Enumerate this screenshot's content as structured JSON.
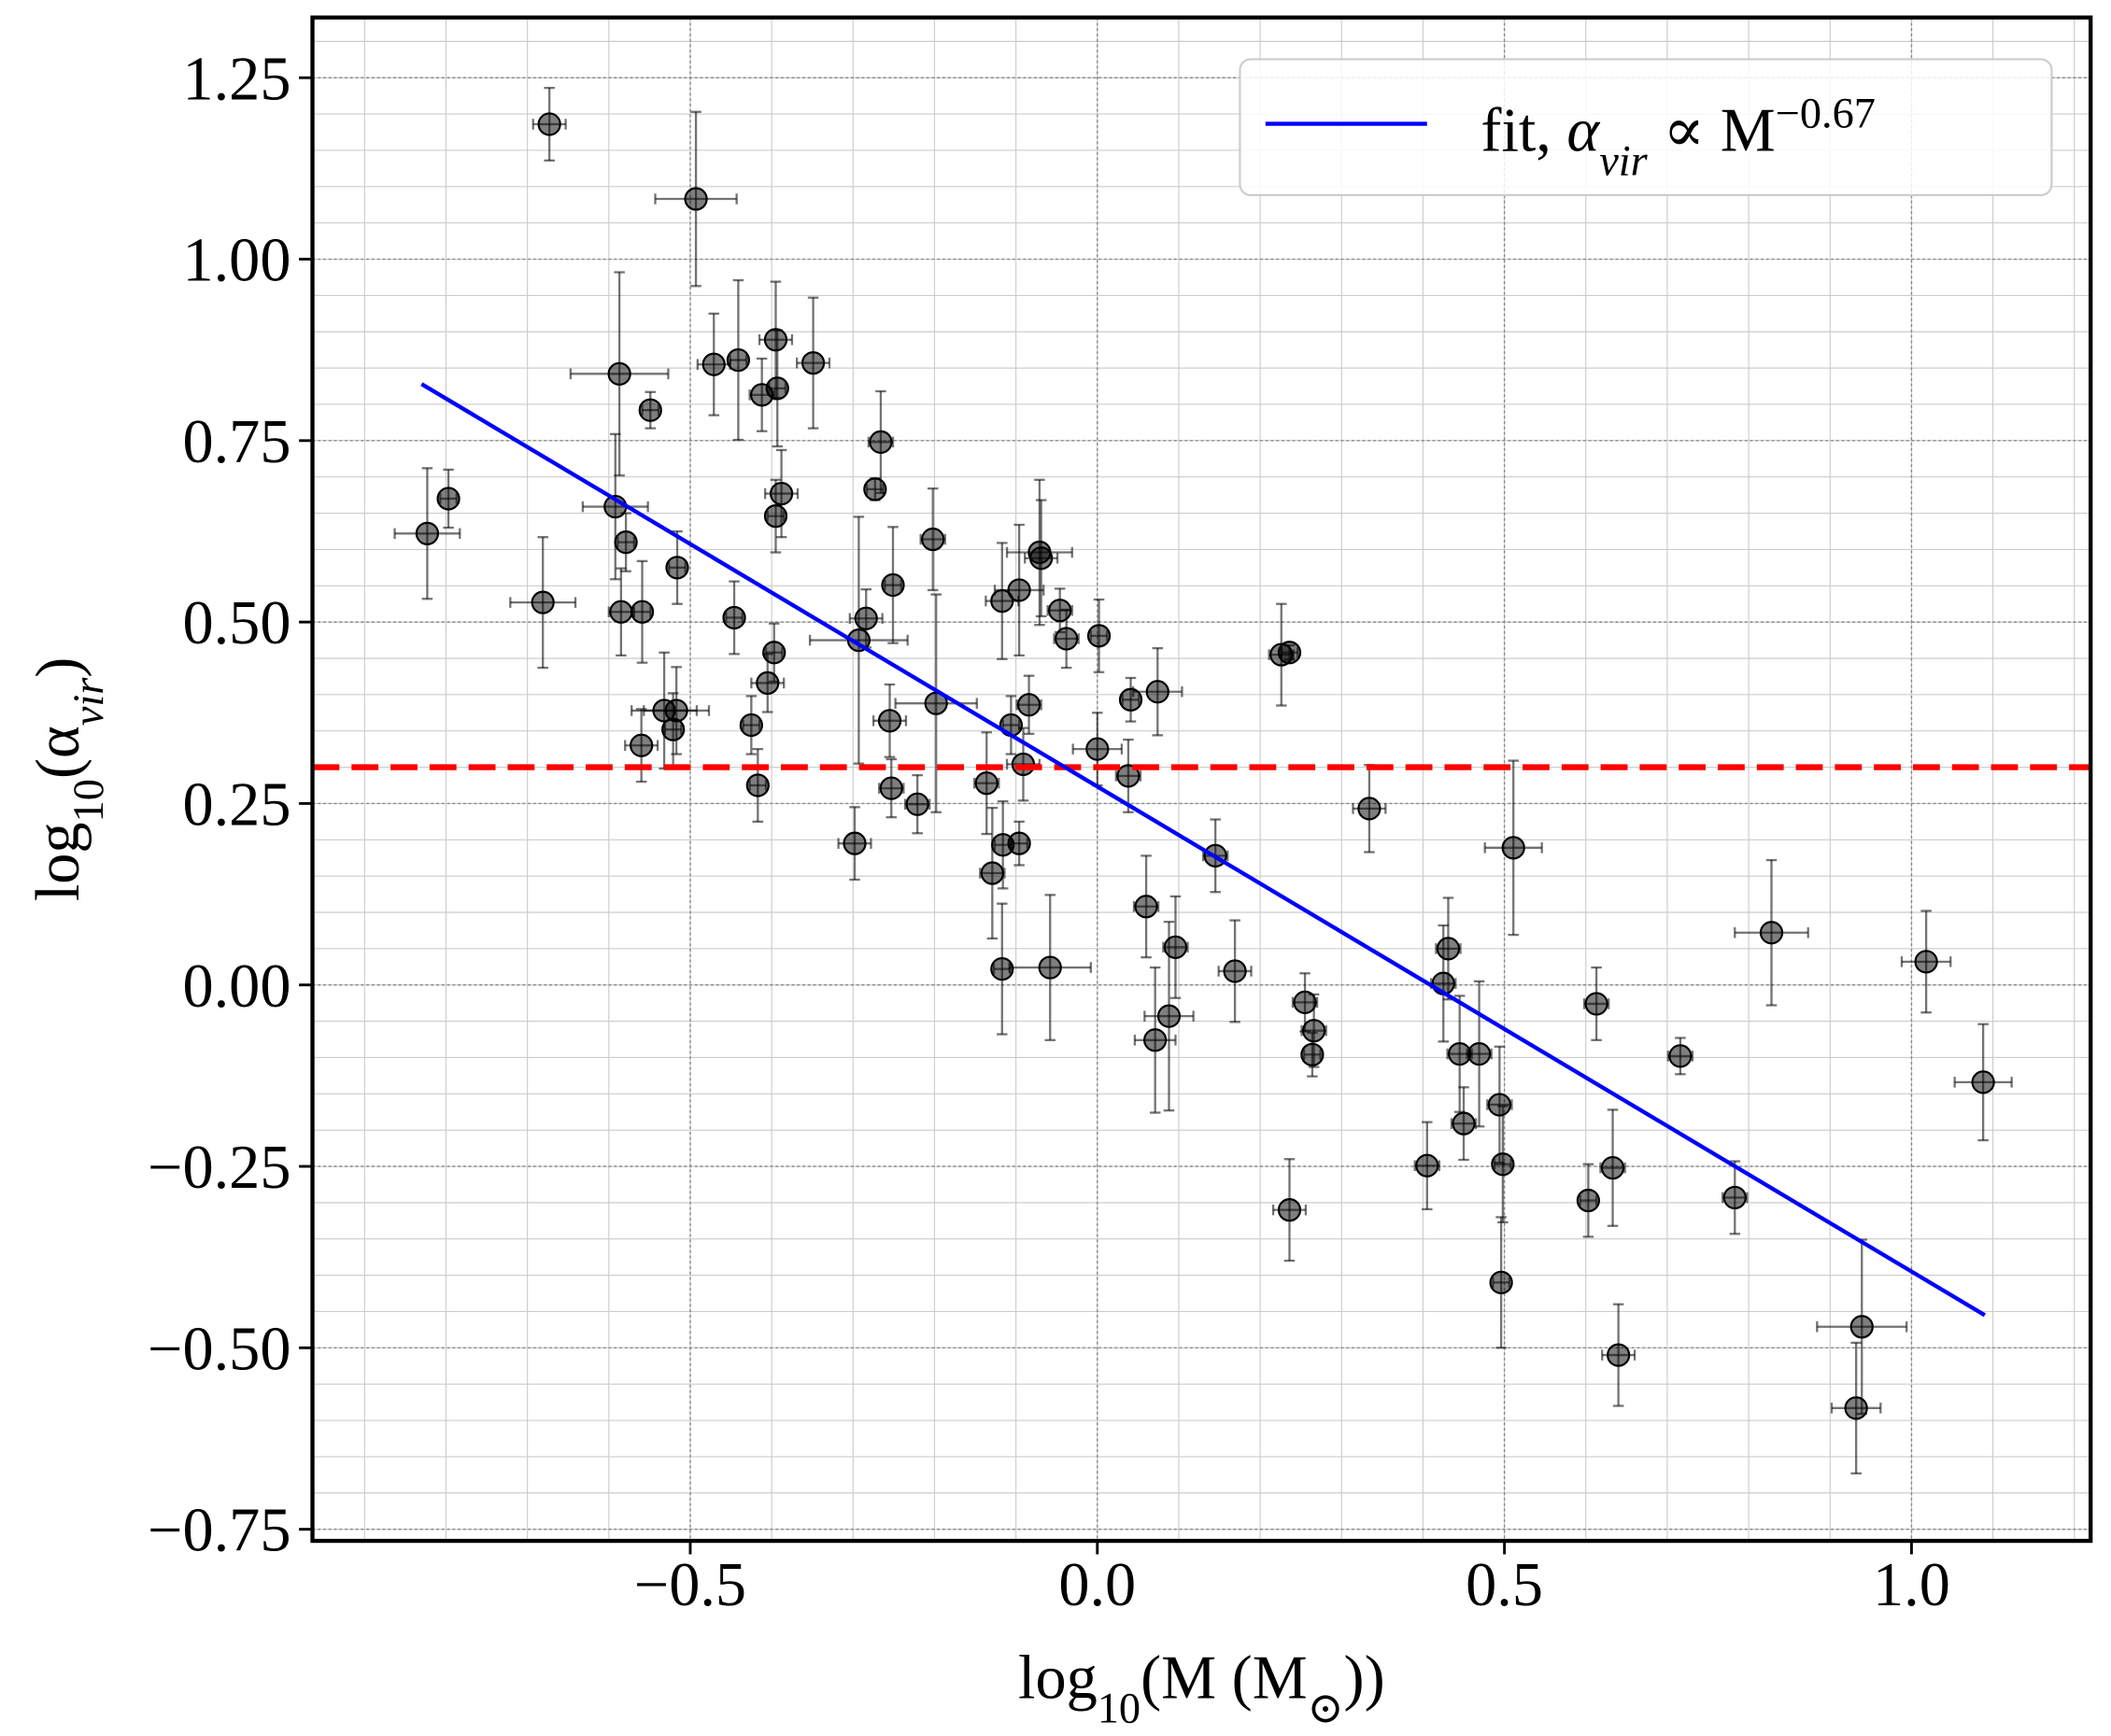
{
  "chart_data": {
    "type": "scatter",
    "xlabel": [
      {
        "t": "log"
      },
      {
        "t": "10",
        "sub": true
      },
      {
        "t": "(M (M"
      },
      {
        "t": "⊙",
        "sub": true
      },
      {
        "t": "))"
      }
    ],
    "ylabel": [
      {
        "t": "log"
      },
      {
        "t": "10",
        "sub": true
      },
      {
        "t": "(α"
      },
      {
        "t": "vir",
        "sub": true,
        "italic": true
      },
      {
        "t": ")"
      }
    ],
    "xlim": [
      -0.964,
      1.22
    ],
    "ylim": [
      -0.766,
      1.333
    ],
    "xticks": [
      {
        "value": -0.5,
        "label": "−0.5"
      },
      {
        "value": 0,
        "label": "0.0"
      },
      {
        "value": 0.5,
        "label": "0.5"
      },
      {
        "value": 1,
        "label": "1.0"
      }
    ],
    "yticks": [
      {
        "value": -0.75,
        "label": "−0.75"
      },
      {
        "value": -0.5,
        "label": "−0.50"
      },
      {
        "value": -0.25,
        "label": "−0.25"
      },
      {
        "value": 0,
        "label": "0.00"
      },
      {
        "value": 0.25,
        "label": "0.25"
      },
      {
        "value": 0.5,
        "label": "0.50"
      },
      {
        "value": 0.75,
        "label": "0.75"
      },
      {
        "value": 1,
        "label": "1.00"
      },
      {
        "value": 1.25,
        "label": "1.25"
      }
    ],
    "grid": true,
    "xminor": 0.1,
    "yminor": 0.05,
    "series": [
      {
        "color": "#000000",
        "x": [
          -0.673,
          -0.493,
          -0.587,
          -0.549,
          -0.471,
          -0.441,
          -0.395,
          -0.412,
          -0.393,
          -0.349,
          -0.266,
          -0.273,
          -0.388,
          -0.395,
          -0.797,
          -0.823,
          -0.592,
          -0.579,
          -0.516,
          -0.681,
          -0.585,
          -0.559,
          -0.446,
          -0.397,
          -0.405,
          -0.532,
          -0.517,
          -0.521,
          -0.56,
          -0.425,
          -0.417,
          -0.202,
          -0.251,
          -0.284,
          -0.293,
          -0.198,
          -0.255,
          -0.253,
          -0.221,
          -0.298,
          -0.117,
          -0.096,
          -0.071,
          -0.069,
          -0.046,
          -0.038,
          0.002,
          -0.084,
          -0.106,
          -0.091,
          -0.136,
          0,
          0.038,
          0.041,
          0.074,
          -0.116,
          -0.096,
          -0.129,
          -0.117,
          -0.058,
          0.06,
          0.096,
          0.088,
          0.071,
          0.169,
          0.145,
          0.226,
          0.236,
          0.334,
          0.255,
          0.266,
          0.264,
          0.236,
          0.511,
          0.425,
          0.431,
          0.445,
          0.469,
          0.45,
          0.494,
          0.498,
          0.405,
          0.496,
          0.613,
          0.603,
          0.633,
          0.64,
          0.716,
          0.783,
          0.828,
          1.018,
          1.088,
          0.939,
          0.932
        ],
        "y": [
          1.186,
          1.083,
          0.842,
          0.792,
          0.855,
          0.861,
          0.889,
          0.813,
          0.822,
          0.857,
          0.748,
          0.683,
          0.677,
          0.646,
          0.67,
          0.622,
          0.659,
          0.61,
          0.575,
          0.527,
          0.514,
          0.514,
          0.506,
          0.458,
          0.416,
          0.378,
          0.378,
          0.352,
          0.33,
          0.358,
          0.275,
          0.614,
          0.551,
          0.505,
          0.475,
          0.388,
          0.364,
          0.271,
          0.249,
          0.195,
          0.529,
          0.544,
          0.596,
          0.588,
          0.516,
          0.477,
          0.481,
          0.386,
          0.358,
          0.304,
          0.278,
          0.325,
          0.288,
          0.393,
          0.404,
          0.193,
          0.195,
          0.154,
          0.022,
          0.024,
          0.108,
          0.052,
          -0.043,
          -0.076,
          0.019,
          0.178,
          0.455,
          0.458,
          0.243,
          -0.024,
          -0.063,
          -0.096,
          -0.31,
          0.189,
          0.002,
          0.05,
          -0.095,
          -0.095,
          -0.191,
          -0.165,
          -0.247,
          -0.249,
          -0.41,
          -0.026,
          -0.297,
          -0.252,
          -0.51,
          -0.098,
          -0.293,
          0.072,
          0.032,
          -0.134,
          -0.471,
          -0.583
        ],
        "xerr": [
          0.02,
          0.05,
          0.06,
          0.01,
          0.02,
          0.01,
          0.02,
          0.015,
          0.01,
          0.02,
          0.015,
          0.01,
          0.02,
          0.01,
          0.01,
          0.04,
          0.04,
          0.01,
          0.01,
          0.04,
          0.015,
          0.01,
          0.01,
          0.01,
          0.02,
          0.04,
          0.04,
          0.01,
          0.02,
          0.01,
          0.01,
          0.015,
          0.01,
          0.02,
          0.06,
          0.05,
          0.02,
          0.015,
          0.015,
          0.02,
          0.02,
          0.03,
          0.04,
          0.02,
          0.015,
          0.015,
          0.01,
          0.015,
          0.01,
          0.02,
          0.015,
          0.03,
          0.015,
          0.01,
          0.03,
          0.01,
          0.01,
          0.015,
          0.01,
          0.05,
          0.015,
          0.015,
          0.03,
          0.025,
          0.02,
          0.015,
          0.015,
          0.01,
          0.02,
          0.015,
          0.015,
          0.01,
          0.02,
          0.035,
          0.015,
          0.015,
          0.015,
          0.015,
          0.015,
          0.015,
          0.01,
          0.015,
          0.01,
          0.015,
          0.01,
          0.015,
          0.02,
          0.015,
          0.015,
          0.045,
          0.03,
          0.035,
          0.055,
          0.03
        ],
        "yerr": [
          0.05,
          0.12,
          0.14,
          0.025,
          0.07,
          0.11,
          0.08,
          0.05,
          0.08,
          0.09,
          0.07,
          0.015,
          0.06,
          0.05,
          0.04,
          0.09,
          0.1,
          0.04,
          0.05,
          0.09,
          0.06,
          0.07,
          0.05,
          0.04,
          0.04,
          0.08,
          0.06,
          0.05,
          0.05,
          0.04,
          0.05,
          0.07,
          0.08,
          0.04,
          0.17,
          0.15,
          0.05,
          0.04,
          0.04,
          0.05,
          0.08,
          0.09,
          0.1,
          0.08,
          0.03,
          0.04,
          0.05,
          0.04,
          0.04,
          0.05,
          0.07,
          0.05,
          0.05,
          0.03,
          0.06,
          0.06,
          0.03,
          0.09,
          0.09,
          0.1,
          0.07,
          0.07,
          0.13,
          0.1,
          0.07,
          0.05,
          0.07,
          0.01,
          0.06,
          0.04,
          0.05,
          0.03,
          0.07,
          0.12,
          0.08,
          0.07,
          0.08,
          0.1,
          0.05,
          0.08,
          0.08,
          0.06,
          0.09,
          0.05,
          0.05,
          0.08,
          0.07,
          0.025,
          0.05,
          0.1,
          0.07,
          0.08,
          0.12,
          0.09
        ]
      }
    ],
    "fit": {
      "color": "#0000ff",
      "x": [
        -0.83,
        1.09
      ],
      "y": [
        0.828,
        -0.455
      ],
      "name": [
        {
          "t": "fit, "
        },
        {
          "t": "α",
          "italic": true
        },
        {
          "t": "vir",
          "sub": true,
          "italic": true
        },
        {
          "t": " ∝ M"
        },
        {
          "t": "−0.67",
          "sup": true
        }
      ]
    },
    "hline": {
      "y": 0.3,
      "color": "#ff0000"
    }
  }
}
